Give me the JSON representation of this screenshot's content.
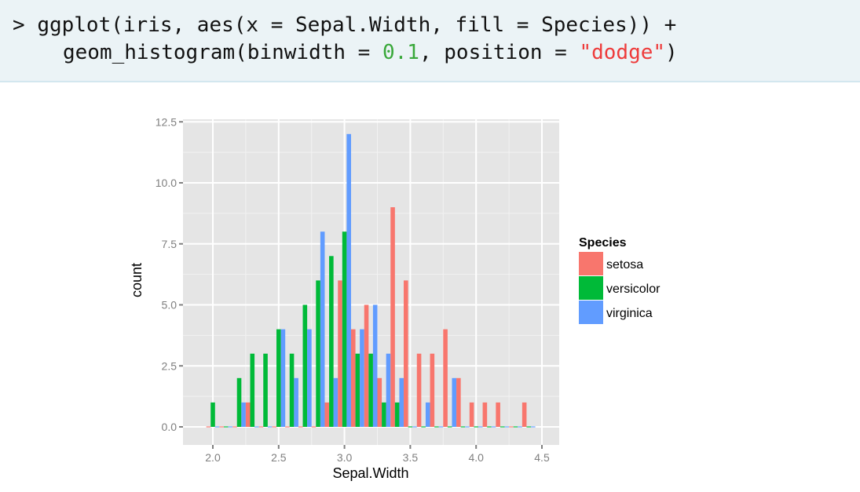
{
  "code": {
    "prompt": ">",
    "line1": "ggplot(iris, aes(x = Sepal.Width, fill = Species)) +",
    "line2_before": "geom_histogram(binwidth = ",
    "line2_num": "0.1",
    "line2_mid": ", position = ",
    "line2_str": "\"dodge\"",
    "line2_after": ")"
  },
  "colors": {
    "panel_bg": "#e5e5e5",
    "grid_major": "#ffffff",
    "grid_minor": "#f2f2f2",
    "setosa": "#f8766d",
    "versicolor": "#00ba38",
    "virginica": "#619cff",
    "tick_label": "#7f7f7f",
    "code_bg": "#ebf3f6",
    "code_number": "#39a83a",
    "code_string": "#ee3b3b"
  },
  "chart_data": {
    "type": "bar",
    "subtype": "histogram-dodge",
    "title": "",
    "xlabel": "Sepal.Width",
    "ylabel": "count",
    "binwidth": 0.1,
    "xlim": [
      1.89,
      4.61
    ],
    "ylim": [
      -0.6,
      12.6
    ],
    "x_ticks": [
      2.0,
      2.5,
      3.0,
      3.5,
      4.0,
      4.5
    ],
    "x_tick_labels": [
      "2.0",
      "2.5",
      "3.0",
      "3.5",
      "4.0",
      "4.5"
    ],
    "y_ticks": [
      0,
      2.5,
      5,
      7.5,
      10,
      12.5
    ],
    "y_tick_labels": [
      "0.0",
      "2.5",
      "5.0",
      "7.5",
      "10.0",
      "12.5"
    ],
    "grid": true,
    "legend": {
      "title": "Species",
      "position": "right",
      "entries": [
        "setosa",
        "versicolor",
        "virginica"
      ]
    },
    "categories": [
      2.0,
      2.1,
      2.2,
      2.3,
      2.4,
      2.5,
      2.6,
      2.7,
      2.8,
      2.9,
      3.0,
      3.1,
      3.2,
      3.3,
      3.4,
      3.5,
      3.6,
      3.7,
      3.8,
      3.9,
      4.0,
      4.1,
      4.2,
      4.3,
      4.4
    ],
    "series": [
      {
        "name": "setosa",
        "values": [
          0,
          0,
          0,
          1,
          0,
          0,
          0,
          0,
          0,
          1,
          6,
          4,
          5,
          2,
          9,
          6,
          3,
          3,
          4,
          2,
          1,
          1,
          1,
          0,
          1
        ]
      },
      {
        "name": "versicolor",
        "values": [
          1,
          0,
          2,
          3,
          3,
          4,
          3,
          5,
          6,
          7,
          8,
          3,
          3,
          1,
          1,
          0,
          0,
          0,
          0,
          0,
          0,
          0,
          0,
          0,
          0
        ]
      },
      {
        "name": "virginica",
        "values": [
          0,
          0,
          1,
          0,
          0,
          4,
          2,
          4,
          8,
          2,
          12,
          4,
          5,
          3,
          2,
          0,
          1,
          0,
          2,
          0,
          0,
          0,
          0,
          0,
          0
        ]
      }
    ]
  }
}
